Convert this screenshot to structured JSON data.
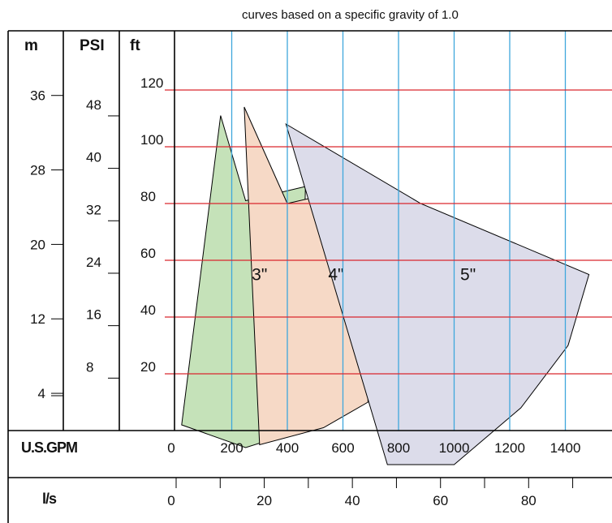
{
  "chart_data": {
    "type": "area",
    "note": "curves based on a specific gravity of 1.0",
    "x_axis": {
      "label": "U.S.GPM",
      "unit": "US gpm",
      "range": [
        0,
        1600
      ],
      "ticks": [
        0,
        200,
        400,
        600,
        800,
        1000,
        1200,
        1400
      ]
    },
    "x2_axis": {
      "label": "l/s",
      "ticks": [
        0,
        20,
        40,
        60,
        80
      ]
    },
    "y_axis": {
      "label": "ft",
      "range": [
        0,
        140
      ],
      "ticks": [
        20,
        40,
        60,
        80,
        100,
        120
      ]
    },
    "y2_axis": {
      "label": "PSI",
      "ticks": [
        8,
        16,
        24,
        32,
        40,
        48
      ]
    },
    "y3_axis": {
      "label": "m",
      "ticks": [
        4,
        12,
        20,
        28,
        36
      ]
    },
    "grid": true,
    "series": [
      {
        "name": "3\"",
        "color": "#c5e2b9",
        "points": [
          [
            20,
            2
          ],
          [
            160,
            111
          ],
          [
            250,
            81
          ],
          [
            465,
            86
          ],
          [
            445,
            0
          ],
          [
            250,
            -6
          ]
        ]
      },
      {
        "name": "4\"",
        "color": "#f6d9c6",
        "points": [
          [
            245,
            114
          ],
          [
            400,
            80
          ],
          [
            710,
            87
          ],
          [
            690,
            10
          ],
          [
            530,
            1
          ],
          [
            300,
            -5
          ]
        ]
      },
      {
        "name": "5\"",
        "color": "#dcdcea",
        "points": [
          [
            395,
            108
          ],
          [
            880,
            80
          ],
          [
            1485,
            55
          ],
          [
            1410,
            30
          ],
          [
            1240,
            8
          ],
          [
            1000,
            -12
          ],
          [
            760,
            -12
          ]
        ]
      }
    ]
  }
}
